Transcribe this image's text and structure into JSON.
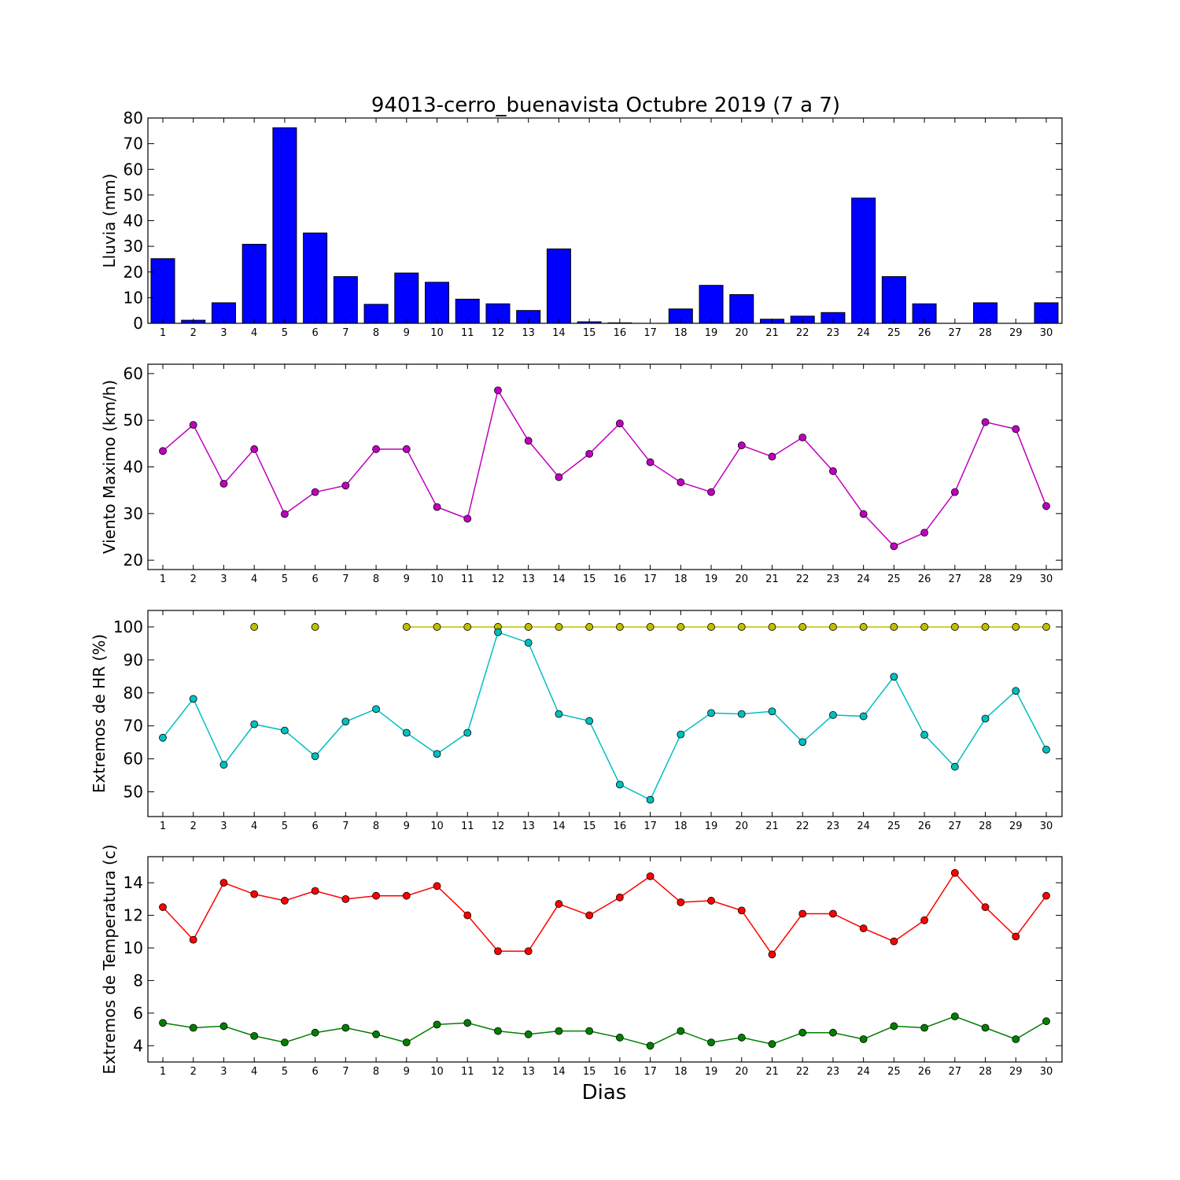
{
  "chart_data": {
    "title": "94013-cerro_buenavista Octubre 2019  (7 a 7)",
    "xlabel": "Dias",
    "days": [
      1,
      2,
      3,
      4,
      5,
      6,
      7,
      8,
      9,
      10,
      11,
      12,
      13,
      14,
      15,
      16,
      17,
      18,
      19,
      20,
      21,
      22,
      23,
      24,
      25,
      26,
      27,
      28,
      29,
      30
    ],
    "panels": [
      {
        "type": "bar",
        "ylabel": "Lluvia (mm)",
        "ylim": [
          0,
          80
        ],
        "yticks": [
          0,
          10,
          20,
          30,
          40,
          50,
          60,
          70,
          80
        ],
        "series": [
          {
            "color": "#0000ff",
            "values": [
              25.2,
              1.2,
              8.0,
              30.8,
              76.2,
              35.2,
              18.2,
              7.4,
              19.6,
              16.0,
              9.4,
              7.6,
              5.0,
              29.0,
              0.6,
              0.2,
              0.0,
              5.6,
              14.8,
              11.2,
              1.6,
              2.8,
              4.2,
              48.8,
              18.2,
              7.6,
              0.0,
              8.0,
              0.0,
              8.0
            ]
          }
        ]
      },
      {
        "type": "line",
        "ylabel": "Viento Maximo (km/h)",
        "ylim": [
          18,
          62
        ],
        "yticks": [
          20,
          30,
          40,
          50,
          60
        ],
        "series": [
          {
            "color": "#bf00bf",
            "values": [
              43.4,
              49.0,
              36.4,
              43.8,
              29.9,
              34.6,
              36.0,
              43.8,
              43.8,
              31.4,
              28.9,
              56.4,
              45.6,
              37.8,
              42.8,
              49.3,
              41.0,
              36.7,
              34.6,
              44.6,
              42.2,
              46.3,
              39.1,
              29.9,
              23.0,
              25.9,
              34.6,
              49.6,
              48.1,
              31.6
            ]
          }
        ]
      },
      {
        "type": "line",
        "ylabel": "Extremos de HR (%)",
        "ylim": [
          42.5,
          105
        ],
        "yticks": [
          50,
          60,
          70,
          80,
          90,
          100
        ],
        "series": [
          {
            "color": "#bfbf00",
            "values": [
              null,
              null,
              null,
              100,
              null,
              100,
              null,
              null,
              100,
              100,
              100,
              100,
              100,
              100,
              100,
              100,
              100,
              100,
              100,
              100,
              100,
              100,
              100,
              100,
              100,
              100,
              100,
              100,
              100,
              100
            ]
          },
          {
            "color": "#00bfbf",
            "values": [
              66.4,
              78.2,
              58.2,
              70.5,
              68.6,
              60.8,
              71.3,
              75.1,
              67.9,
              61.5,
              67.9,
              98.4,
              95.2,
              73.6,
              71.5,
              52.2,
              47.6,
              67.4,
              73.9,
              73.6,
              74.4,
              65.1,
              73.3,
              72.9,
              84.9,
              67.3,
              57.6,
              72.2,
              80.6,
              62.8
            ]
          }
        ]
      },
      {
        "type": "line",
        "ylabel": "Extremos de Temperatura (c)",
        "ylim": [
          3,
          15.6
        ],
        "yticks": [
          4,
          6,
          8,
          10,
          12,
          14
        ],
        "series": [
          {
            "color": "#ff0000",
            "values": [
              12.5,
              10.5,
              14.0,
              13.3,
              12.9,
              13.5,
              13.0,
              13.2,
              13.2,
              13.8,
              12.0,
              9.8,
              9.8,
              12.7,
              12.0,
              13.1,
              14.4,
              12.8,
              12.9,
              12.3,
              9.6,
              12.1,
              12.1,
              11.2,
              10.4,
              11.7,
              14.6,
              12.5,
              10.7,
              13.2
            ]
          },
          {
            "color": "#008000",
            "values": [
              5.4,
              5.1,
              5.2,
              4.6,
              4.2,
              4.8,
              5.1,
              4.7,
              4.2,
              5.3,
              5.4,
              4.9,
              4.7,
              4.9,
              4.9,
              4.5,
              4.0,
              4.9,
              4.2,
              4.5,
              4.1,
              4.8,
              4.8,
              4.4,
              5.2,
              5.1,
              5.8,
              5.1,
              4.4,
              5.5
            ]
          }
        ]
      }
    ]
  }
}
